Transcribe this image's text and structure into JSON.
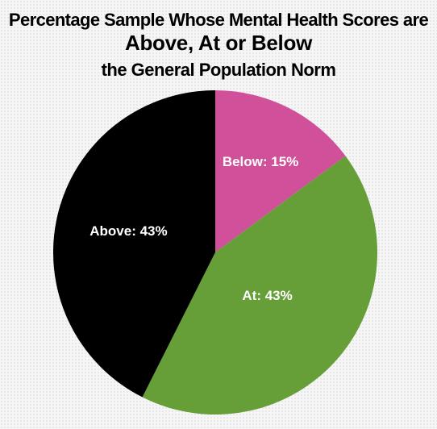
{
  "title": {
    "line1": "Percentage Sample Whose Mental Health Scores are",
    "line2": "Above, At or Below",
    "line3": "the General Population Norm"
  },
  "chart_data": {
    "type": "pie",
    "start": "top, clockwise",
    "slices": [
      {
        "label": "Below: 15%",
        "name": "Below",
        "value": 15,
        "color": "#d0509a"
      },
      {
        "label": "At: 43%",
        "name": "At",
        "value": 43,
        "color": "#669e38"
      },
      {
        "label": "Above: 43%",
        "name": "Above",
        "value": 43,
        "color": "#000000"
      }
    ]
  }
}
